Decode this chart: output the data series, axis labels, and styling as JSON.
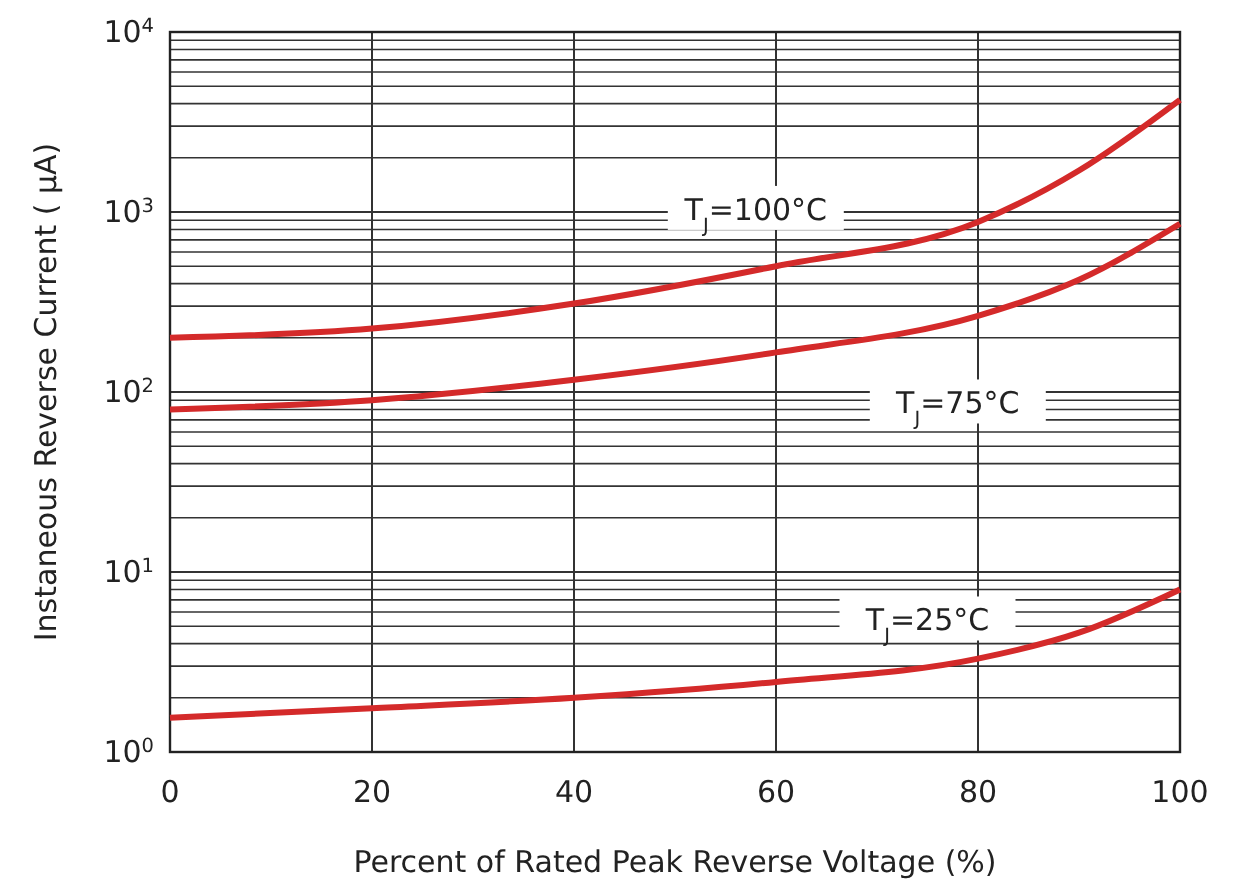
{
  "chart_data": {
    "type": "line",
    "xlabel": "Percent of Rated Peak Reverse Voltage (%)",
    "ylabel": "Instaneous Reverse Current ( μA)",
    "log": "y",
    "grid": true,
    "legend": false,
    "line_style": "solid",
    "xlim": [
      0,
      100
    ],
    "xticks": [
      0,
      20,
      40,
      60,
      80,
      100
    ],
    "ylim": [
      1,
      10000
    ],
    "yticks": [
      {
        "value": 1,
        "label": "10$^{0}$"
      },
      {
        "value": 10,
        "label": "10$^{1}$"
      },
      {
        "value": 100,
        "label": "10$^{2}$"
      },
      {
        "value": 1000,
        "label": "10$^{3}$"
      },
      {
        "value": 10000,
        "label": "10$^{4}$"
      }
    ],
    "x": [
      0,
      20,
      40,
      60,
      80,
      90,
      100
    ],
    "series": [
      {
        "name": "T$_{J}$=100°C",
        "color": "#d42a2a",
        "values": [
          200,
          225,
          310,
          500,
          880,
          1700,
          4200
        ]
      },
      {
        "name": "T$_{J}$=75°C",
        "color": "#d42a2a",
        "values": [
          80,
          90,
          117,
          166,
          265,
          420,
          860
        ]
      },
      {
        "name": "T$_{J}$=25°C",
        "color": "#d42a2a",
        "values": [
          1.55,
          1.75,
          2.0,
          2.45,
          3.3,
          4.6,
          8
        ]
      }
    ]
  }
}
